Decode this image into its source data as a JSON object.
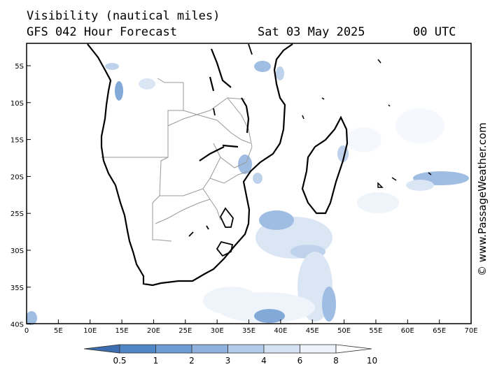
{
  "header": {
    "line1": "Visibility (nautical miles)",
    "line2": "GFS 042 Hour Forecast",
    "date": "Sat 03 May 2025",
    "time": "00 UTC"
  },
  "credit": "© www.PassageWeather.com",
  "map": {
    "region": "Southern Africa / Madagascar",
    "lon_range": [
      0,
      70
    ],
    "lat_range": [
      -40,
      -2.5
    ],
    "lat_ticks": [
      "5S",
      "10S",
      "15S",
      "20S",
      "25S",
      "30S",
      "35S",
      "40S"
    ],
    "lon_ticks": [
      "0",
      "5E",
      "10E",
      "15E",
      "20E",
      "25E",
      "30E",
      "35E",
      "40E",
      "45E",
      "50E",
      "55E",
      "60E",
      "65E",
      "70E"
    ],
    "land_outline_color": "#000000",
    "border_color": "#999999",
    "background_color": "#ffffff"
  },
  "legend": {
    "labels": [
      "0.5",
      "1",
      "2",
      "3",
      "4",
      "6",
      "8",
      "10"
    ],
    "colors": [
      "#3b6db0",
      "#4f86c6",
      "#6e9bd2",
      "#8fb2dd",
      "#b3cbe8",
      "#d5e2f3",
      "#edf3fb",
      "#ffffff"
    ],
    "unit": "nautical miles"
  }
}
